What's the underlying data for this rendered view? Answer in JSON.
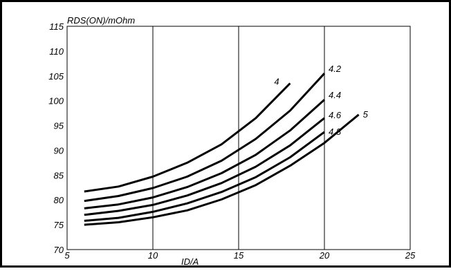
{
  "chart_data": {
    "type": "line",
    "title": "",
    "xlabel": "ID/A",
    "ylabel": "RDS(ON)/mOhm",
    "xlim": [
      5,
      25
    ],
    "ylim": [
      70,
      115
    ],
    "x_ticks": [
      5,
      10,
      15,
      20,
      25
    ],
    "y_ticks": [
      70,
      75,
      80,
      85,
      90,
      95,
      100,
      105,
      110,
      115
    ],
    "x_tick_labels": [
      "5",
      "10",
      "15",
      "20",
      "25"
    ],
    "y_tick_labels": [
      "70",
      "75",
      "80",
      "85",
      "90",
      "95",
      "100",
      "105",
      "110",
      "115"
    ],
    "grid": {
      "vertical": true,
      "horizontal": false
    },
    "colors": {
      "line": "#000000",
      "grid": "#000000",
      "background": "#ffffff"
    },
    "series": [
      {
        "name": "4",
        "x": [
          6,
          8,
          10,
          12,
          14,
          16,
          18
        ],
        "y": [
          81.7,
          82.7,
          84.7,
          87.5,
          91.2,
          96.5,
          103.5
        ]
      },
      {
        "name": "4.2",
        "x": [
          6,
          8,
          10,
          12,
          14,
          16,
          18,
          20
        ],
        "y": [
          79.8,
          80.8,
          82.4,
          84.7,
          87.9,
          92.3,
          98.0,
          105.5
        ]
      },
      {
        "name": "4.4",
        "x": [
          6,
          8,
          10,
          12,
          14,
          16,
          18,
          20
        ],
        "y": [
          78.3,
          79.1,
          80.5,
          82.6,
          85.4,
          89.1,
          94.0,
          100.2
        ]
      },
      {
        "name": "4.6",
        "x": [
          6,
          8,
          10,
          12,
          14,
          16,
          18,
          20
        ],
        "y": [
          77.0,
          77.8,
          79.0,
          80.9,
          83.4,
          86.7,
          91.0,
          96.5
        ]
      },
      {
        "name": "4.8",
        "x": [
          6,
          8,
          10,
          12,
          14,
          16,
          18,
          20
        ],
        "y": [
          75.8,
          76.4,
          77.6,
          79.3,
          81.6,
          84.6,
          88.6,
          93.7
        ]
      },
      {
        "name": "5",
        "x": [
          6,
          8,
          10,
          12,
          14,
          16,
          18,
          20,
          22
        ],
        "y": [
          75.0,
          75.5,
          76.5,
          77.9,
          80.1,
          83.0,
          86.9,
          91.5,
          97.2
        ]
      }
    ]
  }
}
